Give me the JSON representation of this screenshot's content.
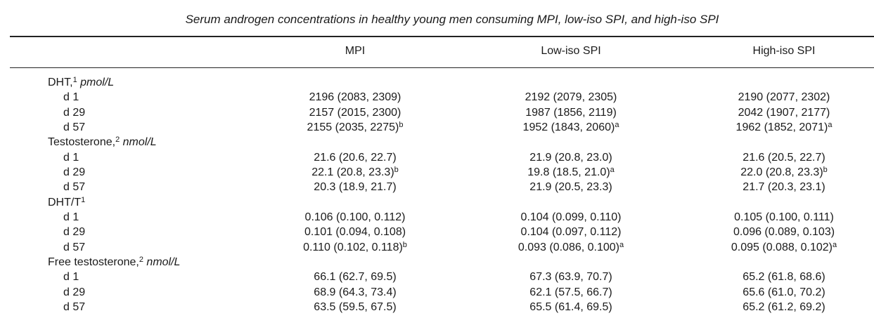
{
  "title": "Serum androgen concentrations in healthy young men consuming MPI, low-iso SPI, and high-iso SPI",
  "columns": [
    "MPI",
    "Low-iso SPI",
    "High-iso SPI"
  ],
  "groups": [
    {
      "label": "DHT,",
      "note": "1",
      "unit": "pmol/L",
      "rows": [
        {
          "label": "d 1",
          "cells": [
            {
              "value": "2196 (2083, 2309)"
            },
            {
              "value": "2192 (2079, 2305)"
            },
            {
              "value": "2190 (2077, 2302)"
            }
          ]
        },
        {
          "label": "d 29",
          "cells": [
            {
              "value": "2157 (2015, 2300)"
            },
            {
              "value": "1987 (1856, 2119)"
            },
            {
              "value": "2042 (1907, 2177)"
            }
          ]
        },
        {
          "label": "d 57",
          "cells": [
            {
              "value": "2155 (2035, 2275)",
              "sup": "b"
            },
            {
              "value": "1952 (1843, 2060)",
              "sup": "a"
            },
            {
              "value": "1962 (1852, 2071)",
              "sup": "a"
            }
          ]
        }
      ]
    },
    {
      "label": "Testosterone,",
      "note": "2",
      "unit": "nmol/L",
      "rows": [
        {
          "label": "d 1",
          "cells": [
            {
              "value": "21.6 (20.6, 22.7)"
            },
            {
              "value": "21.9 (20.8, 23.0)"
            },
            {
              "value": "21.6 (20.5, 22.7)"
            }
          ]
        },
        {
          "label": "d 29",
          "cells": [
            {
              "value": "22.1 (20.8, 23.3)",
              "sup": "b"
            },
            {
              "value": "19.8 (18.5, 21.0)",
              "sup": "a"
            },
            {
              "value": "22.0 (20.8, 23.3)",
              "sup": "b"
            }
          ]
        },
        {
          "label": "d 57",
          "cells": [
            {
              "value": "20.3 (18.9, 21.7)"
            },
            {
              "value": "21.9 (20.5, 23.3)"
            },
            {
              "value": "21.7 (20.3, 23.1)"
            }
          ]
        }
      ]
    },
    {
      "label": "DHT/T",
      "note": "1",
      "rows": [
        {
          "label": "d 1",
          "cells": [
            {
              "value": "0.106 (0.100, 0.112)"
            },
            {
              "value": "0.104 (0.099, 0.110)"
            },
            {
              "value": "0.105 (0.100, 0.111)"
            }
          ]
        },
        {
          "label": "d 29",
          "cells": [
            {
              "value": "0.101 (0.094, 0.108)"
            },
            {
              "value": "0.104 (0.097, 0.112)"
            },
            {
              "value": "0.096 (0.089, 0.103)"
            }
          ]
        },
        {
          "label": "d 57",
          "cells": [
            {
              "value": "0.110 (0.102, 0.118)",
              "sup": "b"
            },
            {
              "value": "0.093 (0.086, 0.100)",
              "sup": "a"
            },
            {
              "value": "0.095 (0.088, 0.102)",
              "sup": "a"
            }
          ]
        }
      ]
    },
    {
      "label": "Free testosterone,",
      "note": "2",
      "unit": "nmol/L",
      "rows": [
        {
          "label": "d 1",
          "cells": [
            {
              "value": "66.1 (62.7, 69.5)"
            },
            {
              "value": "67.3 (63.9, 70.7)"
            },
            {
              "value": "65.2 (61.8, 68.6)"
            }
          ]
        },
        {
          "label": "d 29",
          "cells": [
            {
              "value": "68.9 (64.3, 73.4)"
            },
            {
              "value": "62.1 (57.5, 66.7)"
            },
            {
              "value": "65.6 (61.0, 70.2)"
            }
          ]
        },
        {
          "label": "d 57",
          "cells": [
            {
              "value": "63.5 (59.5, 67.5)"
            },
            {
              "value": "65.5 (61.4, 69.5)"
            },
            {
              "value": "65.2 (61.2, 69.2)"
            }
          ]
        }
      ]
    }
  ]
}
